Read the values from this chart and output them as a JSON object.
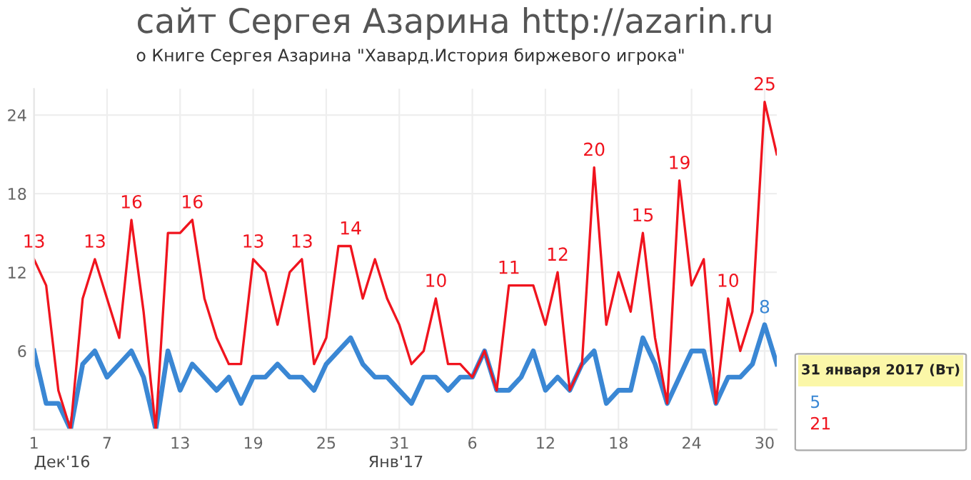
{
  "chart_data": {
    "type": "line",
    "title": "сайт Сергея Азарина http://azarin.ru",
    "subtitle": "о Книге Сергея Азарина \"Хавард.История биржевого игрока\"",
    "x": [
      "2016-12-01",
      "2016-12-02",
      "2016-12-03",
      "2016-12-04",
      "2016-12-05",
      "2016-12-06",
      "2016-12-07",
      "2016-12-08",
      "2016-12-09",
      "2016-12-10",
      "2016-12-11",
      "2016-12-12",
      "2016-12-13",
      "2016-12-14",
      "2016-12-15",
      "2016-12-16",
      "2016-12-17",
      "2016-12-18",
      "2016-12-19",
      "2016-12-20",
      "2016-12-21",
      "2016-12-22",
      "2016-12-23",
      "2016-12-24",
      "2016-12-25",
      "2016-12-26",
      "2016-12-27",
      "2016-12-28",
      "2016-12-29",
      "2016-12-30",
      "2016-12-31",
      "2017-01-01",
      "2017-01-02",
      "2017-01-03",
      "2017-01-04",
      "2017-01-05",
      "2017-01-06",
      "2017-01-07",
      "2017-01-08",
      "2017-01-09",
      "2017-01-10",
      "2017-01-11",
      "2017-01-12",
      "2017-01-13",
      "2017-01-14",
      "2017-01-15",
      "2017-01-16",
      "2017-01-17",
      "2017-01-18",
      "2017-01-19",
      "2017-01-20",
      "2017-01-21",
      "2017-01-22",
      "2017-01-23",
      "2017-01-24",
      "2017-01-25",
      "2017-01-26",
      "2017-01-27",
      "2017-01-28",
      "2017-01-29",
      "2017-01-30",
      "2017-01-31"
    ],
    "series": [
      {
        "color": "#3a87d4",
        "values": [
          6,
          2,
          2,
          0,
          5,
          6,
          4,
          5,
          6,
          4,
          0,
          6,
          3,
          5,
          4,
          3,
          4,
          2,
          4,
          4,
          5,
          4,
          4,
          3,
          5,
          6,
          7,
          5,
          4,
          4,
          3,
          2,
          4,
          4,
          3,
          4,
          4,
          6,
          3,
          3,
          4,
          6,
          3,
          4,
          3,
          5,
          6,
          2,
          3,
          3,
          7,
          5,
          2,
          4,
          6,
          6,
          2,
          4,
          4,
          5,
          8,
          5
        ],
        "value_labels": [
          null,
          null,
          null,
          null,
          null,
          null,
          null,
          null,
          null,
          null,
          null,
          null,
          null,
          null,
          null,
          null,
          null,
          null,
          null,
          null,
          null,
          null,
          null,
          null,
          null,
          null,
          null,
          null,
          null,
          null,
          null,
          null,
          null,
          null,
          null,
          null,
          null,
          null,
          null,
          null,
          null,
          null,
          null,
          null,
          null,
          null,
          null,
          null,
          null,
          null,
          null,
          null,
          null,
          null,
          null,
          null,
          null,
          null,
          null,
          null,
          "8",
          null
        ]
      },
      {
        "color": "#f0141e",
        "values": [
          13,
          11,
          3,
          0,
          10,
          13,
          10,
          7,
          16,
          9,
          0,
          15,
          15,
          16,
          10,
          7,
          5,
          5,
          13,
          12,
          8,
          12,
          13,
          5,
          7,
          14,
          14,
          10,
          13,
          10,
          8,
          5,
          6,
          10,
          5,
          5,
          4,
          6,
          3,
          11,
          11,
          11,
          8,
          12,
          3,
          5,
          20,
          8,
          12,
          9,
          15,
          7,
          2,
          19,
          11,
          13,
          2,
          10,
          6,
          9,
          25,
          21
        ],
        "value_labels": [
          "13",
          null,
          null,
          null,
          null,
          "13",
          null,
          null,
          "16",
          null,
          null,
          null,
          null,
          "16",
          null,
          null,
          null,
          null,
          "13",
          null,
          null,
          null,
          "13",
          null,
          null,
          null,
          "14",
          null,
          null,
          null,
          null,
          null,
          null,
          "10",
          null,
          null,
          null,
          null,
          null,
          "11",
          null,
          null,
          null,
          "12",
          null,
          null,
          "20",
          null,
          null,
          null,
          "15",
          null,
          null,
          "19",
          null,
          null,
          null,
          "10",
          null,
          null,
          "25",
          null
        ]
      }
    ],
    "xlim": [
      "2016-12-01",
      "2017-01-31"
    ],
    "xticks": [
      {
        "value": "2016-12-01",
        "label": "1"
      },
      {
        "value": "2016-12-07",
        "label": "7"
      },
      {
        "value": "2016-12-13",
        "label": "13"
      },
      {
        "value": "2016-12-19",
        "label": "19"
      },
      {
        "value": "2016-12-25",
        "label": "25"
      },
      {
        "value": "2016-12-31",
        "label": "31"
      },
      {
        "value": "2017-01-06",
        "label": "6"
      },
      {
        "value": "2017-01-12",
        "label": "12"
      },
      {
        "value": "2017-01-18",
        "label": "18"
      },
      {
        "value": "2017-01-24",
        "label": "24"
      },
      {
        "value": "2017-01-30",
        "label": "30"
      }
    ],
    "ylim": [
      0,
      26
    ],
    "yticks": [
      {
        "value": 0,
        "label": null
      },
      6,
      12,
      18,
      24
    ],
    "grid": true,
    "line_style": "solid",
    "annotations": [
      "Дек'16",
      "Янв'17",
      "31 января 2017 (Вт)",
      "5",
      "21"
    ]
  }
}
